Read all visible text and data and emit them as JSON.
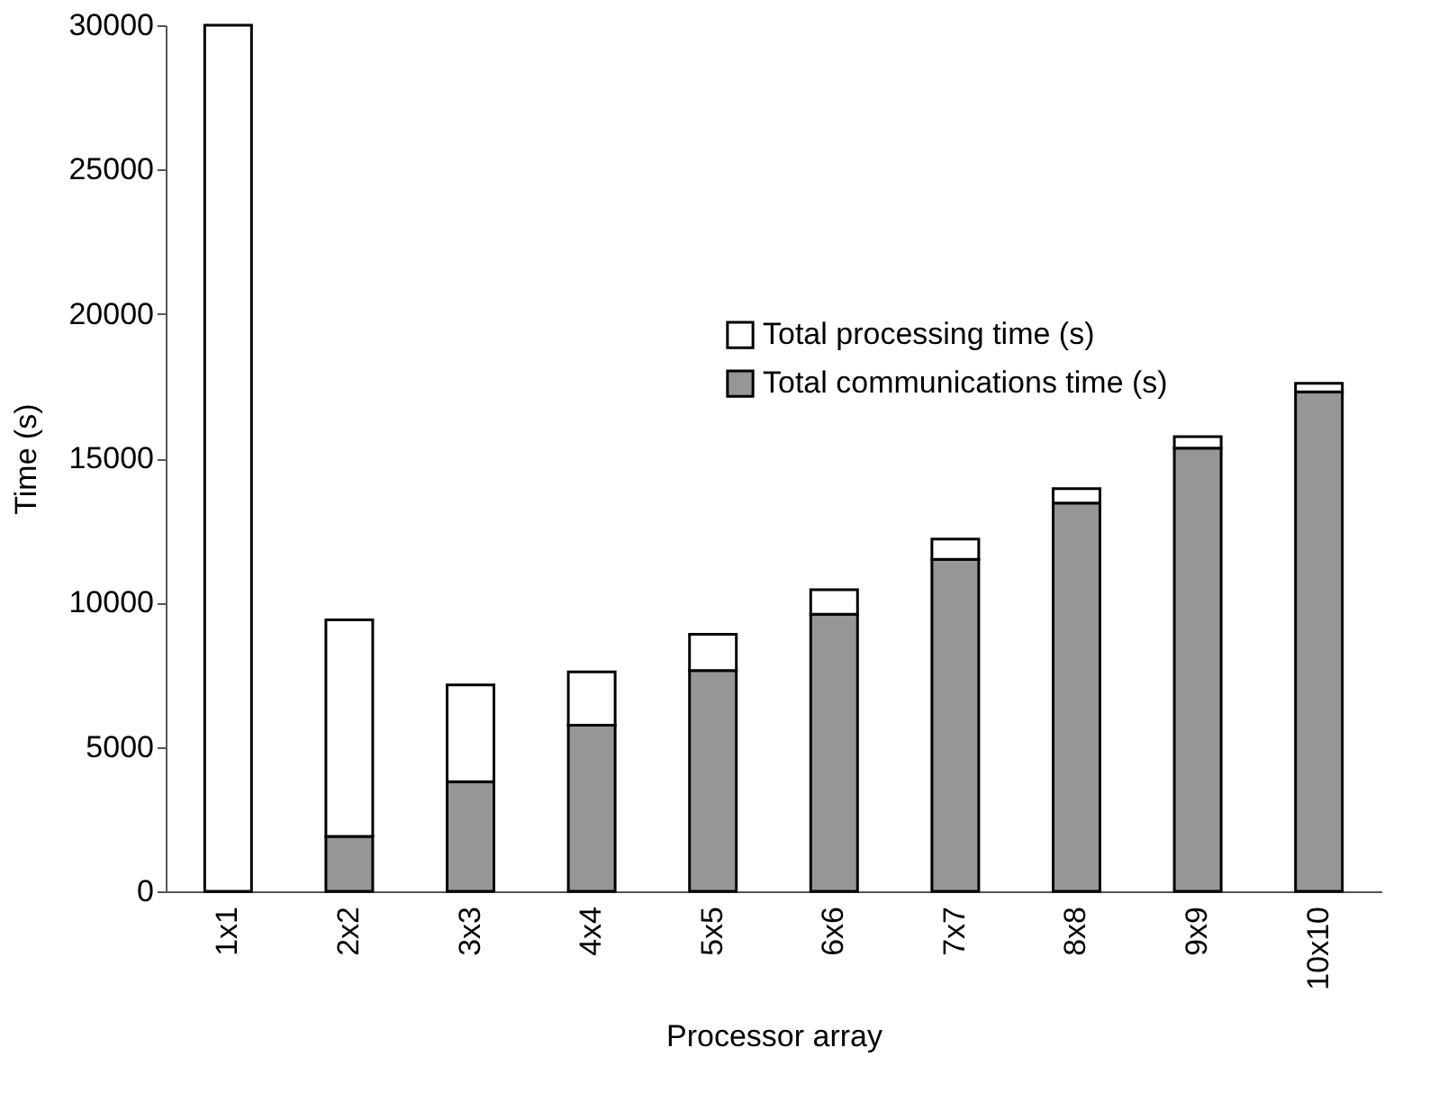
{
  "chart_data": {
    "type": "bar",
    "stacked": true,
    "xlabel": "Processor array",
    "ylabel": "Time (s)",
    "categories": [
      "1x1",
      "2x2",
      "3x3",
      "4x4",
      "5x5",
      "6x6",
      "7x7",
      "8x8",
      "9x9",
      "10x10"
    ],
    "series": [
      {
        "name": "Total communications time (s)",
        "color": "#969696",
        "values": [
          0,
          1900,
          3800,
          5750,
          7650,
          9600,
          11500,
          13450,
          15350,
          17300
        ]
      },
      {
        "name": "Total processing time (s)",
        "color": "#ffffff",
        "values": [
          30000,
          7500,
          3350,
          1850,
          1250,
          850,
          700,
          500,
          400,
          300
        ]
      }
    ],
    "ylim": [
      0,
      30000
    ],
    "yticks": [
      0,
      5000,
      10000,
      15000,
      20000,
      25000,
      30000
    ],
    "grid": false,
    "legend": "right"
  }
}
